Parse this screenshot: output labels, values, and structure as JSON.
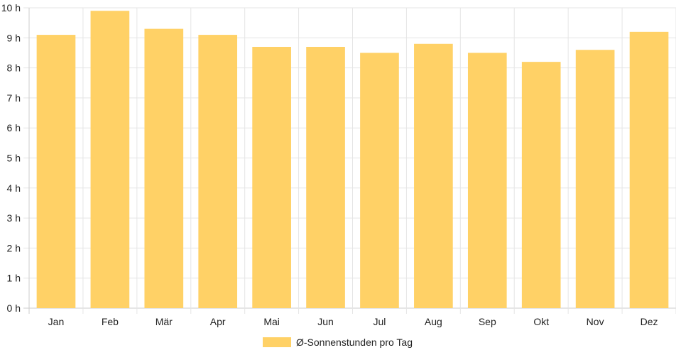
{
  "chart_data": {
    "type": "bar",
    "categories": [
      "Jan",
      "Feb",
      "Mär",
      "Apr",
      "Mai",
      "Jun",
      "Jul",
      "Aug",
      "Sep",
      "Okt",
      "Nov",
      "Dez"
    ],
    "series": [
      {
        "name": "Ø-Sonnenstunden pro Tag",
        "values": [
          9.1,
          9.9,
          9.3,
          9.1,
          8.7,
          8.7,
          8.5,
          8.8,
          8.5,
          8.2,
          8.6,
          9.2
        ]
      }
    ],
    "ylim": [
      0,
      10
    ],
    "y_ticks": [
      "0 h",
      "1 h",
      "2 h",
      "3 h",
      "4 h",
      "5 h",
      "6 h",
      "7 h",
      "8 h",
      "9 h",
      "10 h"
    ],
    "grid": true,
    "legend_position": "bottom",
    "bar_color": "#FFD166",
    "grid_color": "#e5e5e5"
  }
}
